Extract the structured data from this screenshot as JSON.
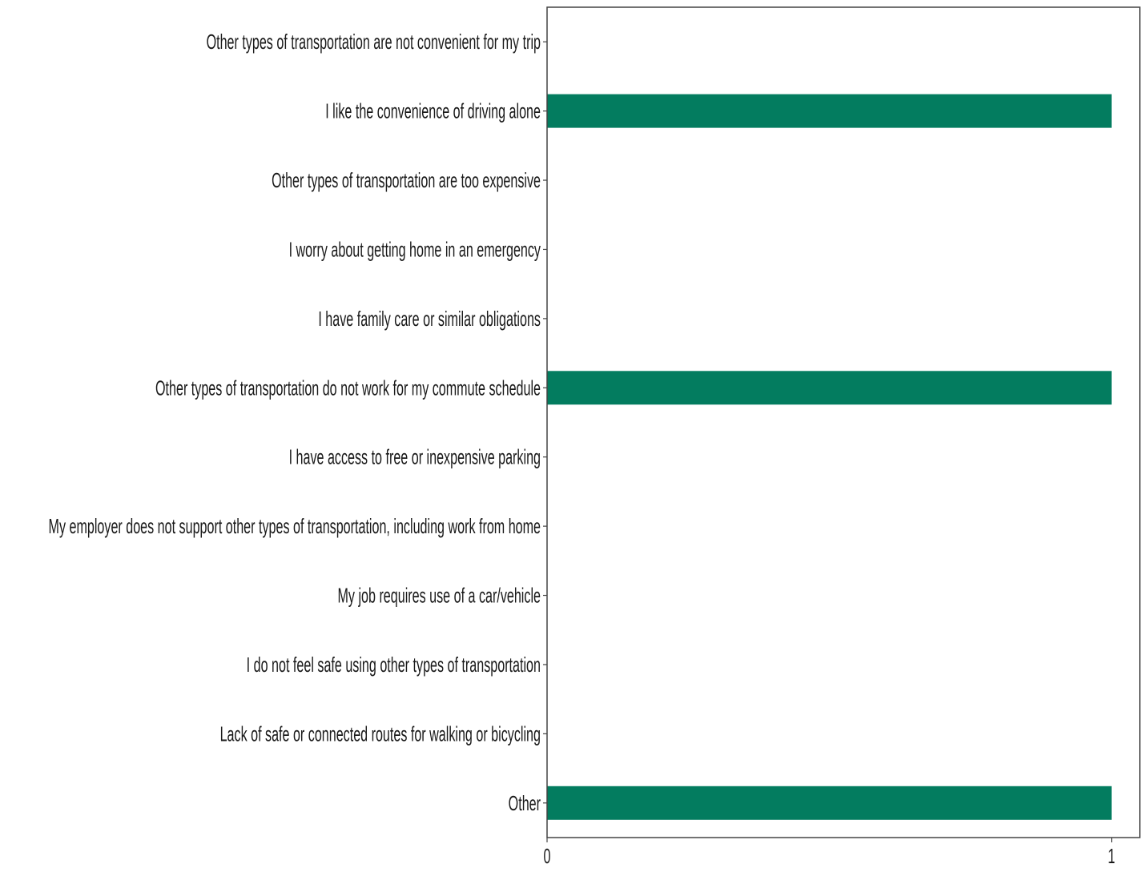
{
  "chart_data": {
    "type": "bar",
    "orientation": "horizontal",
    "categories": [
      "Other types of transportation are not convenient for my trip",
      "I like the convenience of driving alone",
      "Other types of transportation are too expensive",
      "I worry about getting home in an emergency",
      "I have family care or similar obligations",
      "Other types of transportation do not work for my commute schedule",
      "I have access to free or inexpensive parking",
      "My employer does not support other types of transportation, including work from home",
      "My job requires use of a car/vehicle",
      "I do not feel safe using other types of transportation",
      "Lack of safe or connected routes for walking or bicycling",
      "Other"
    ],
    "values": [
      0,
      1,
      0,
      0,
      0,
      1,
      0,
      0,
      0,
      0,
      0,
      1
    ],
    "x_ticks": [
      "0",
      "1"
    ],
    "xlim": [
      0,
      1.05
    ],
    "title": "",
    "xlabel": "",
    "ylabel": "",
    "grid": false,
    "bar_color": "#037c5f",
    "axis_color": "#444444"
  }
}
